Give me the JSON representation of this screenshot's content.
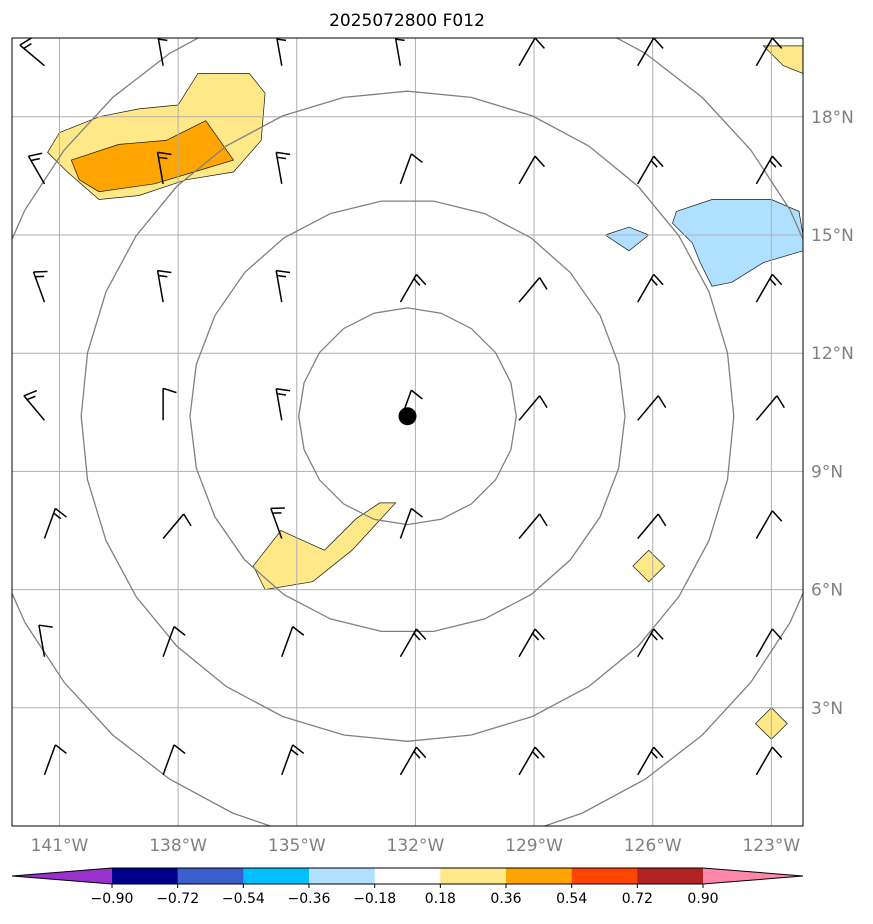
{
  "title": "2025072800 F012",
  "map": {
    "lon_range": [
      -142.2,
      -122.2
    ],
    "lat_range": [
      0.0,
      20.0
    ],
    "gridline_color": "#b0b0b0",
    "gridlines": true,
    "lat_labels": [
      {
        "lat": 18,
        "text": "18°N"
      },
      {
        "lat": 15,
        "text": "15°N"
      },
      {
        "lat": 12,
        "text": "12°N"
      },
      {
        "lat": 9,
        "text": "9°N"
      },
      {
        "lat": 6,
        "text": "6°N"
      },
      {
        "lat": 3,
        "text": "3°N"
      }
    ],
    "lon_labels": [
      {
        "lon": -141,
        "text": "141°W"
      },
      {
        "lon": -138,
        "text": "138°W"
      },
      {
        "lon": -135,
        "text": "135°W"
      },
      {
        "lon": -132,
        "text": "132°W"
      },
      {
        "lon": -129,
        "text": "129°W"
      },
      {
        "lon": -126,
        "text": "126°W"
      },
      {
        "lon": -123,
        "text": "123°W"
      }
    ],
    "storm_center": {
      "lon": -132.2,
      "lat": 10.4,
      "color": "#000000"
    },
    "range_rings_deg": [
      2.75,
      5.5,
      8.25,
      11.0
    ],
    "ring_color": "#808080"
  },
  "colorbar": {
    "levels": [
      -0.9,
      -0.72,
      -0.54,
      -0.36,
      -0.18,
      0.18,
      0.36,
      0.54,
      0.72,
      0.9
    ],
    "tick_labels": [
      "−0.90",
      "−0.72",
      "−0.54",
      "−0.36",
      "−0.18",
      "0.18",
      "0.36",
      "0.54",
      "0.72",
      "0.90"
    ],
    "colors": [
      "#9932cc",
      "#00008b",
      "#3a5fcd",
      "#00bfff",
      "#b0e0ff",
      "#ffffff",
      "#ffe888",
      "#ffa500",
      "#ff4500",
      "#b22222",
      "#ff88aa"
    ],
    "extend": "both"
  },
  "chart_data": {
    "type": "map",
    "fields": "filled contours of a scalar field, range rings around storm centre, wind barbs",
    "filled_regions": [
      {
        "level_color": "#ffe888",
        "polygon": [
          [
            -141.0,
            17.6
          ],
          [
            -140.0,
            18.0
          ],
          [
            -139.0,
            18.2
          ],
          [
            -138.0,
            18.3
          ],
          [
            -137.5,
            19.1
          ],
          [
            -136.2,
            19.1
          ],
          [
            -135.8,
            18.6
          ],
          [
            -135.9,
            17.4
          ],
          [
            -136.6,
            16.6
          ],
          [
            -137.8,
            16.4
          ],
          [
            -139.0,
            16.0
          ],
          [
            -140.0,
            15.9
          ],
          [
            -140.8,
            16.6
          ],
          [
            -141.3,
            17.1
          ]
        ]
      },
      {
        "level_color": "#ffa500",
        "polygon": [
          [
            -140.7,
            16.9
          ],
          [
            -139.5,
            17.3
          ],
          [
            -138.3,
            17.4
          ],
          [
            -137.3,
            17.9
          ],
          [
            -136.6,
            16.9
          ],
          [
            -137.6,
            16.6
          ],
          [
            -138.6,
            16.3
          ],
          [
            -140.0,
            16.1
          ],
          [
            -140.5,
            16.4
          ]
        ]
      },
      {
        "level_color": "#ffe888",
        "polygon": [
          [
            -134.3,
            7.0
          ],
          [
            -133.5,
            7.8
          ],
          [
            -132.9,
            8.2
          ],
          [
            -132.5,
            8.2
          ],
          [
            -133.6,
            7.0
          ],
          [
            -134.6,
            6.2
          ],
          [
            -135.8,
            6.0
          ],
          [
            -136.1,
            6.6
          ],
          [
            -135.4,
            7.5
          ]
        ]
      },
      {
        "level_color": "#b0e0ff",
        "polygon": [
          [
            -125.4,
            15.6
          ],
          [
            -124.5,
            15.9
          ],
          [
            -123.0,
            15.9
          ],
          [
            -122.3,
            15.6
          ],
          [
            -122.2,
            15.0
          ],
          [
            -122.2,
            14.6
          ],
          [
            -123.2,
            14.3
          ],
          [
            -124.0,
            13.8
          ],
          [
            -124.5,
            13.7
          ],
          [
            -124.8,
            14.3
          ],
          [
            -125.0,
            14.8
          ],
          [
            -125.5,
            15.3
          ]
        ]
      },
      {
        "level_color": "#b0e0ff",
        "polygon": [
          [
            -127.2,
            15.0
          ],
          [
            -126.6,
            15.2
          ],
          [
            -126.1,
            15.0
          ],
          [
            -126.6,
            14.6
          ]
        ]
      },
      {
        "level_color": "#ffe888",
        "polygon": [
          [
            -123.2,
            19.8
          ],
          [
            -122.2,
            19.8
          ],
          [
            -122.2,
            19.1
          ],
          [
            -122.7,
            19.3
          ]
        ]
      },
      {
        "level_color": "#ffe888",
        "polygon": [
          [
            -126.1,
            7.0
          ],
          [
            -125.7,
            6.6
          ],
          [
            -126.1,
            6.2
          ],
          [
            -126.5,
            6.6
          ]
        ]
      },
      {
        "level_color": "#ffe888",
        "polygon": [
          [
            -123.0,
            3.0
          ],
          [
            -122.6,
            2.6
          ],
          [
            -123.0,
            2.2
          ],
          [
            -123.4,
            2.6
          ]
        ]
      }
    ],
    "barb_lons": [
      -141,
      -138,
      -135,
      -132,
      -129,
      -126,
      -123
    ],
    "barb_lats": [
      19.5,
      16.5,
      13.5,
      10.5,
      7.5,
      4.5,
      1.5
    ],
    "barbs": [
      [
        [
          140,
          1.5
        ],
        [
          100,
          1.5
        ],
        [
          100,
          1.5
        ],
        [
          100,
          1.5
        ],
        [
          60,
          1
        ],
        [
          60,
          1
        ],
        [
          60,
          1
        ]
      ],
      [
        [
          120,
          1.5
        ],
        [
          100,
          1.5
        ],
        [
          100,
          1.5
        ],
        [
          70,
          1
        ],
        [
          60,
          1
        ],
        [
          60,
          1.5
        ],
        [
          60,
          1.5
        ]
      ],
      [
        [
          110,
          1.5
        ],
        [
          100,
          1.5
        ],
        [
          100,
          1.5
        ],
        [
          60,
          1.5
        ],
        [
          50,
          1
        ],
        [
          60,
          1.5
        ],
        [
          60,
          1.5
        ]
      ],
      [
        [
          130,
          1.5
        ],
        [
          90,
          1
        ],
        [
          100,
          1.5
        ],
        [
          70,
          1
        ],
        [
          50,
          1
        ],
        [
          50,
          1
        ],
        [
          50,
          1
        ]
      ],
      [
        [
          70,
          1.5
        ],
        [
          50,
          1
        ],
        [
          110,
          1.5
        ],
        [
          70,
          1
        ],
        [
          50,
          1
        ],
        [
          50,
          1
        ],
        [
          60,
          1
        ]
      ],
      [
        [
          100,
          1
        ],
        [
          70,
          1
        ],
        [
          70,
          1
        ],
        [
          60,
          1.5
        ],
        [
          60,
          1.5
        ],
        [
          60,
          1.5
        ],
        [
          60,
          1
        ]
      ],
      [
        [
          70,
          1
        ],
        [
          70,
          1
        ],
        [
          70,
          1.5
        ],
        [
          60,
          1.5
        ],
        [
          60,
          1.5
        ],
        [
          60,
          1.5
        ],
        [
          60,
          1
        ]
      ]
    ]
  }
}
